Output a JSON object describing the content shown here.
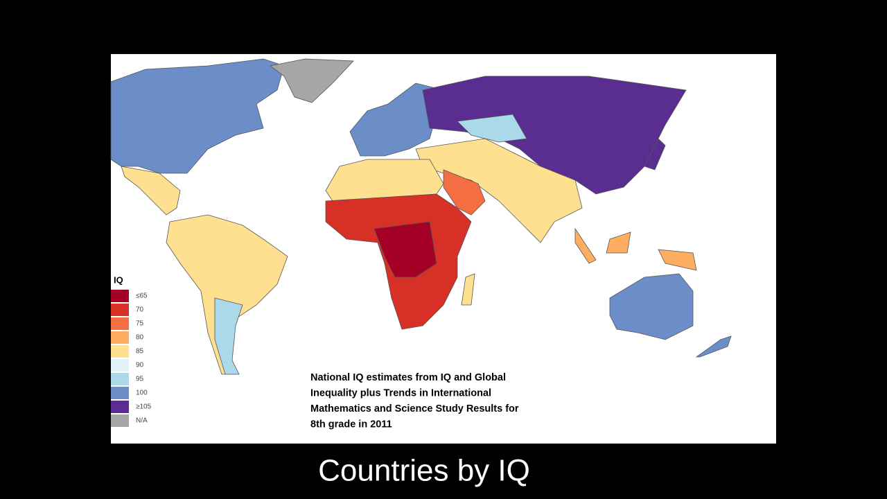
{
  "legend": {
    "title": "IQ",
    "items": [
      {
        "label": "≤65",
        "color": "#a50026"
      },
      {
        "label": "70",
        "color": "#d73027"
      },
      {
        "label": "75",
        "color": "#f46d43"
      },
      {
        "label": "80",
        "color": "#fdae61"
      },
      {
        "label": "85",
        "color": "#fee090"
      },
      {
        "label": "90",
        "color": "#e0f3f8"
      },
      {
        "label": "95",
        "color": "#abd9e9"
      },
      {
        "label": "100",
        "color": "#6b8ec8"
      },
      {
        "label": "≥105",
        "color": "#5a2d91"
      },
      {
        "label": "N/A",
        "color": "#a6a6a6"
      }
    ]
  },
  "caption": [
    "National IQ estimates from IQ and Global",
    "Inequality plus Trends in International",
    "Mathematics and Science Study Results for",
    "8th grade in 2011"
  ],
  "subtitle": "Countries by IQ"
}
